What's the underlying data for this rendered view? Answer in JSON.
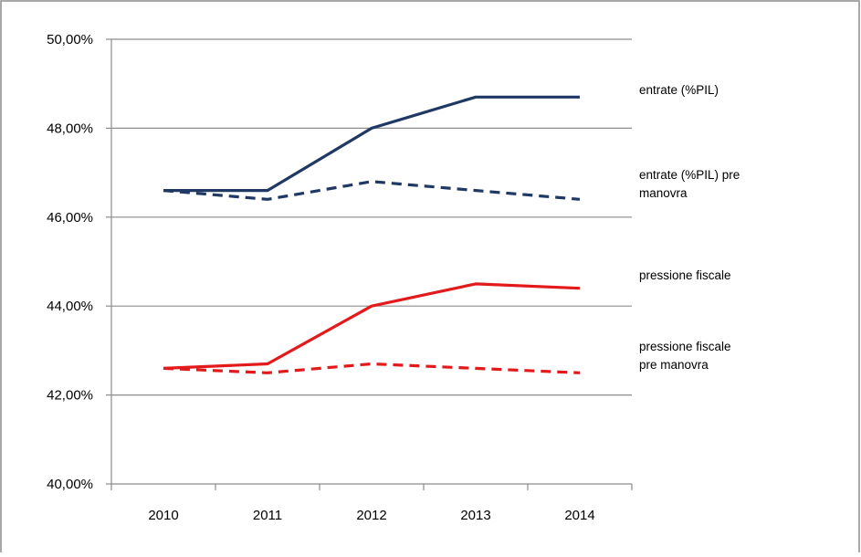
{
  "chart_data": {
    "type": "line",
    "categories": [
      "2010",
      "2011",
      "2012",
      "2013",
      "2014"
    ],
    "ylim": [
      40,
      50
    ],
    "y_ticks": [
      40,
      42,
      44,
      46,
      48,
      50
    ],
    "y_tick_labels": [
      "40,00%",
      "42,00%",
      "44,00%",
      "46,00%",
      "48,00%",
      "50,00%"
    ],
    "grid": true,
    "legend_placement": "right",
    "series": [
      {
        "name": "entrate (%PIL)",
        "legend_lines": [
          "entrate (%PIL)"
        ],
        "color": "#1f3864",
        "style": "solid",
        "values": [
          46.6,
          46.6,
          48.0,
          48.7,
          48.7
        ]
      },
      {
        "name": "entrate (%PIL) pre manovra",
        "legend_lines": [
          "entrate (%PIL) pre",
          "manovra"
        ],
        "color": "#1f3864",
        "style": "dashed",
        "values": [
          46.6,
          46.4,
          46.8,
          46.6,
          46.4
        ]
      },
      {
        "name": "pressione fiscale",
        "legend_lines": [
          "pressione fiscale"
        ],
        "color": "#e31a1c",
        "style": "solid",
        "values": [
          42.6,
          42.7,
          44.0,
          44.5,
          44.4
        ]
      },
      {
        "name": "pressione fiscale pre manovra",
        "legend_lines": [
          "pressione fiscale",
          "pre manovra"
        ],
        "color": "#e31a1c",
        "style": "dashed",
        "values": [
          42.6,
          42.5,
          42.7,
          42.6,
          42.5
        ]
      }
    ]
  }
}
